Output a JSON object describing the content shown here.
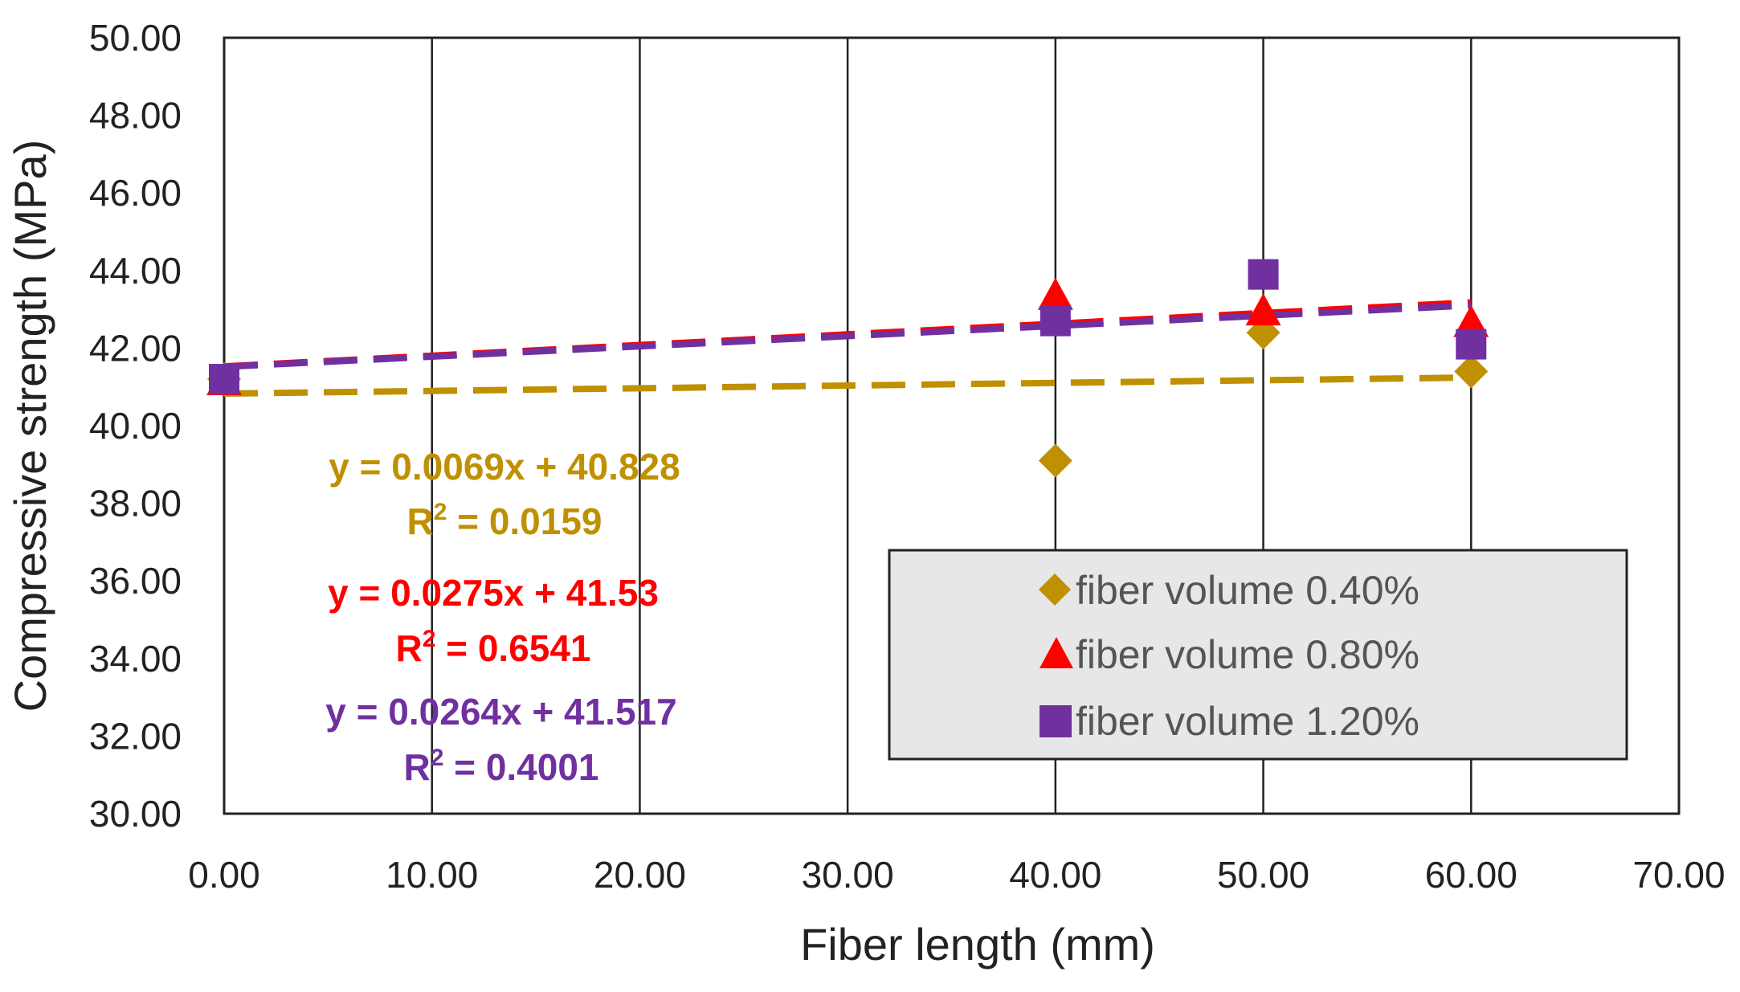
{
  "chart_data": {
    "type": "scatter",
    "xlabel": "Fiber length (mm)",
    "ylabel": "Compressive strength (MPa)",
    "xlim": [
      0,
      70
    ],
    "ylim": [
      30,
      50
    ],
    "xticks": [
      "0.00",
      "10.00",
      "20.00",
      "30.00",
      "40.00",
      "50.00",
      "60.00",
      "70.00"
    ],
    "yticks": [
      "30.00",
      "32.00",
      "34.00",
      "36.00",
      "38.00",
      "40.00",
      "42.00",
      "44.00",
      "46.00",
      "48.00",
      "50.00"
    ],
    "legend_position": "bottom-right",
    "series": [
      {
        "name": "fiber volume 0.40%",
        "marker": "diamond",
        "color": "#BF9000",
        "x": [
          0,
          40,
          50,
          60
        ],
        "y": [
          41.2,
          39.1,
          42.4,
          41.4
        ],
        "trendline": {
          "slope": 0.0069,
          "intercept": 40.828
        },
        "equation": "y = 0.0069x + 40.828",
        "r2_label": "R",
        "r2_sup": "2",
        "r2_value": " = 0.0159"
      },
      {
        "name": "fiber volume 0.80%",
        "marker": "triangle",
        "color": "#FF0000",
        "x": [
          0,
          40,
          50,
          60
        ],
        "y": [
          41.2,
          43.4,
          43.0,
          42.7
        ],
        "trendline": {
          "slope": 0.0275,
          "intercept": 41.53
        },
        "equation": "y = 0.0275x + 41.53",
        "r2_label": "R",
        "r2_sup": "2",
        "r2_value": " = 0.6541"
      },
      {
        "name": "fiber volume 1.20%",
        "marker": "square",
        "color": "#7030A0",
        "x": [
          0,
          40,
          50,
          60
        ],
        "y": [
          41.2,
          42.7,
          43.9,
          42.1
        ],
        "trendline": {
          "slope": 0.0264,
          "intercept": 41.517
        },
        "equation": "y = 0.0264x + 41.517",
        "r2_label": "R",
        "r2_sup": "2",
        "r2_value": " = 0.4001"
      }
    ]
  }
}
